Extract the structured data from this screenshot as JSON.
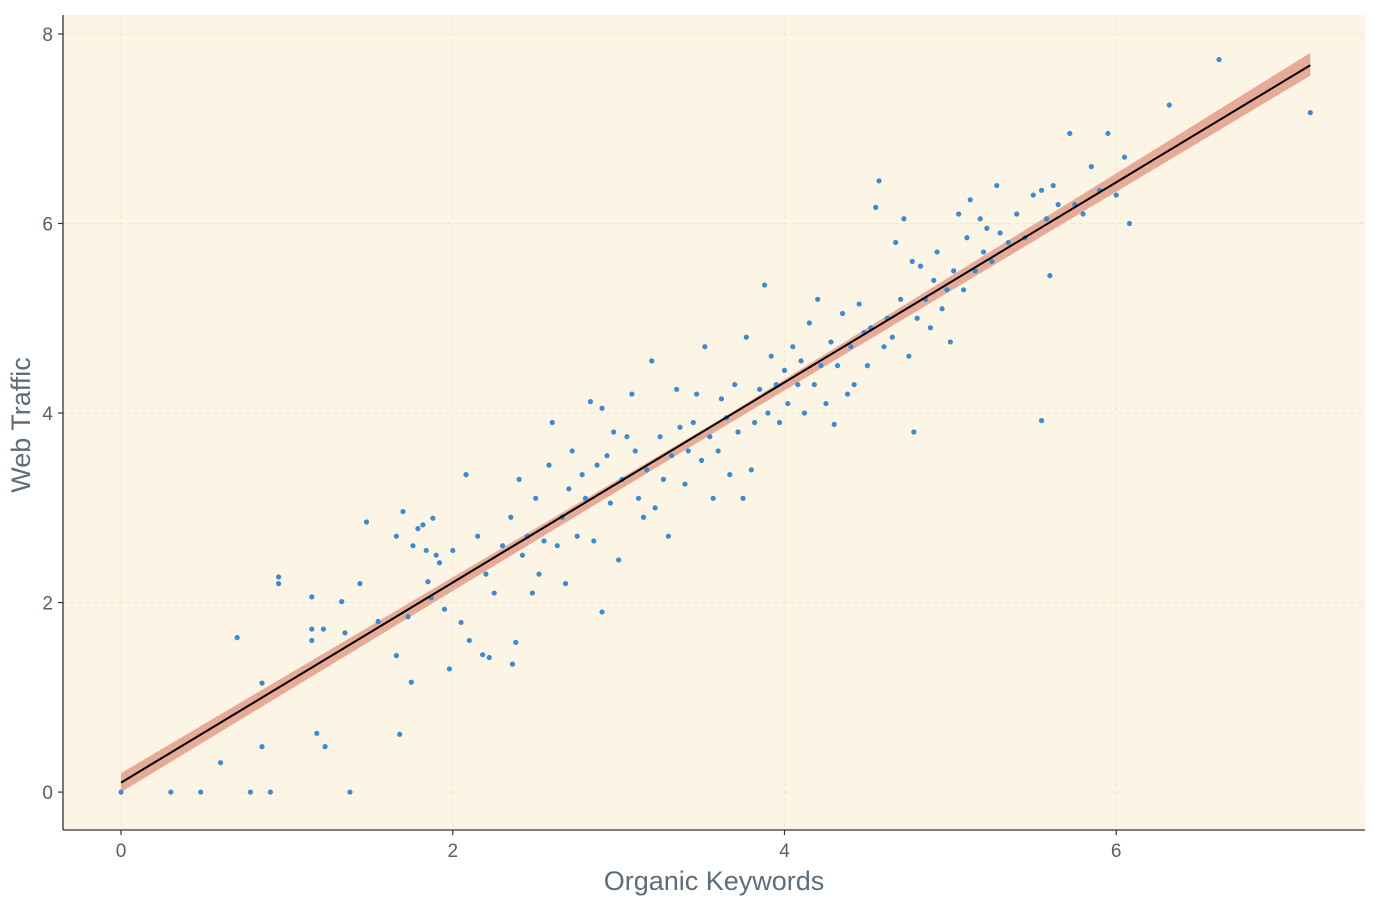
{
  "chart_data": {
    "type": "scatter",
    "title": "",
    "xlabel": "Organic Keywords",
    "ylabel": "Web Traffic",
    "xlim": [
      -0.35,
      7.5
    ],
    "ylim": [
      -0.4,
      8.2
    ],
    "x_ticks": [
      "0",
      "2",
      "4",
      "6"
    ],
    "y_ticks": [
      "0",
      "2",
      "4",
      "6",
      "8"
    ],
    "grid": true,
    "legend": "none",
    "colors": {
      "panel_background": "#fcf5e5",
      "points": "#3a8bd3",
      "fit_line": "#000000",
      "confidence_band": "#e3a28e",
      "grid": "#efe5cd",
      "axis_line": "#333333"
    },
    "fit_line": {
      "x": [
        0,
        7.17
      ],
      "y": [
        0.1,
        7.67
      ]
    },
    "confidence_band": {
      "x": [
        0,
        3.6,
        7.17
      ],
      "y_lower": [
        0.0,
        3.82,
        7.56
      ],
      "y_upper": [
        0.2,
        3.92,
        7.8
      ]
    },
    "points": [
      [
        0.0,
        0.0
      ],
      [
        0.3,
        0.0
      ],
      [
        0.48,
        0.0
      ],
      [
        0.6,
        0.31
      ],
      [
        0.7,
        1.63
      ],
      [
        0.78,
        0.0
      ],
      [
        0.85,
        1.15
      ],
      [
        0.85,
        0.48
      ],
      [
        0.9,
        0.0
      ],
      [
        0.95,
        2.27
      ],
      [
        0.95,
        2.2
      ],
      [
        1.15,
        2.06
      ],
      [
        1.15,
        1.72
      ],
      [
        1.15,
        1.6
      ],
      [
        1.18,
        0.62
      ],
      [
        1.22,
        1.72
      ],
      [
        1.23,
        0.48
      ],
      [
        1.33,
        2.01
      ],
      [
        1.35,
        1.68
      ],
      [
        1.38,
        0.0
      ],
      [
        1.44,
        2.2
      ],
      [
        1.48,
        2.85
      ],
      [
        1.55,
        1.8
      ],
      [
        1.66,
        2.7
      ],
      [
        1.66,
        1.44
      ],
      [
        1.68,
        0.61
      ],
      [
        1.7,
        2.96
      ],
      [
        1.73,
        1.85
      ],
      [
        1.75,
        1.16
      ],
      [
        1.76,
        2.6
      ],
      [
        1.79,
        2.78
      ],
      [
        1.82,
        2.82
      ],
      [
        1.84,
        2.55
      ],
      [
        1.85,
        2.22
      ],
      [
        1.87,
        2.05
      ],
      [
        1.88,
        2.89
      ],
      [
        1.9,
        2.5
      ],
      [
        1.92,
        2.42
      ],
      [
        1.95,
        1.93
      ],
      [
        1.98,
        1.3
      ],
      [
        2.0,
        2.55
      ],
      [
        2.05,
        1.79
      ],
      [
        2.08,
        3.35
      ],
      [
        2.1,
        1.6
      ],
      [
        2.15,
        2.7
      ],
      [
        2.18,
        1.45
      ],
      [
        2.2,
        2.3
      ],
      [
        2.22,
        1.42
      ],
      [
        2.25,
        2.1
      ],
      [
        2.3,
        2.6
      ],
      [
        2.35,
        2.9
      ],
      [
        2.36,
        1.35
      ],
      [
        2.38,
        1.58
      ],
      [
        2.4,
        3.3
      ],
      [
        2.42,
        2.5
      ],
      [
        2.45,
        2.7
      ],
      [
        2.48,
        2.1
      ],
      [
        2.5,
        3.1
      ],
      [
        2.52,
        2.3
      ],
      [
        2.55,
        2.65
      ],
      [
        2.58,
        3.45
      ],
      [
        2.6,
        3.9
      ],
      [
        2.63,
        2.6
      ],
      [
        2.66,
        2.9
      ],
      [
        2.68,
        2.2
      ],
      [
        2.7,
        3.2
      ],
      [
        2.72,
        3.6
      ],
      [
        2.75,
        2.7
      ],
      [
        2.78,
        3.35
      ],
      [
        2.8,
        3.1
      ],
      [
        2.83,
        4.12
      ],
      [
        2.85,
        2.65
      ],
      [
        2.87,
        3.45
      ],
      [
        2.9,
        1.9
      ],
      [
        2.9,
        4.05
      ],
      [
        2.93,
        3.55
      ],
      [
        2.95,
        3.05
      ],
      [
        2.97,
        3.8
      ],
      [
        3.0,
        2.45
      ],
      [
        3.02,
        3.3
      ],
      [
        3.05,
        3.75
      ],
      [
        3.08,
        4.2
      ],
      [
        3.1,
        3.6
      ],
      [
        3.12,
        3.1
      ],
      [
        3.15,
        2.9
      ],
      [
        3.17,
        3.4
      ],
      [
        3.2,
        4.55
      ],
      [
        3.22,
        3.0
      ],
      [
        3.25,
        3.75
      ],
      [
        3.27,
        3.3
      ],
      [
        3.3,
        2.7
      ],
      [
        3.32,
        3.55
      ],
      [
        3.35,
        4.25
      ],
      [
        3.37,
        3.85
      ],
      [
        3.4,
        3.25
      ],
      [
        3.42,
        3.6
      ],
      [
        3.45,
        3.9
      ],
      [
        3.47,
        4.2
      ],
      [
        3.5,
        3.5
      ],
      [
        3.52,
        4.7
      ],
      [
        3.55,
        3.75
      ],
      [
        3.57,
        3.1
      ],
      [
        3.6,
        3.6
      ],
      [
        3.62,
        4.15
      ],
      [
        3.65,
        3.95
      ],
      [
        3.67,
        3.35
      ],
      [
        3.7,
        4.3
      ],
      [
        3.72,
        3.8
      ],
      [
        3.75,
        3.1
      ],
      [
        3.77,
        4.8
      ],
      [
        3.8,
        3.4
      ],
      [
        3.82,
        3.9
      ],
      [
        3.85,
        4.25
      ],
      [
        3.88,
        5.35
      ],
      [
        3.9,
        4.0
      ],
      [
        3.92,
        4.6
      ],
      [
        3.95,
        4.3
      ],
      [
        3.97,
        3.9
      ],
      [
        4.0,
        4.45
      ],
      [
        4.02,
        4.1
      ],
      [
        4.05,
        4.7
      ],
      [
        4.08,
        4.3
      ],
      [
        4.1,
        4.55
      ],
      [
        4.12,
        4.0
      ],
      [
        4.15,
        4.95
      ],
      [
        4.18,
        4.3
      ],
      [
        4.2,
        5.2
      ],
      [
        4.22,
        4.5
      ],
      [
        4.25,
        4.1
      ],
      [
        4.28,
        4.75
      ],
      [
        4.3,
        3.88
      ],
      [
        4.32,
        4.5
      ],
      [
        4.35,
        5.05
      ],
      [
        4.38,
        4.2
      ],
      [
        4.4,
        4.7
      ],
      [
        4.42,
        4.3
      ],
      [
        4.45,
        5.15
      ],
      [
        4.48,
        4.85
      ],
      [
        4.5,
        4.5
      ],
      [
        4.52,
        4.9
      ],
      [
        4.55,
        6.17
      ],
      [
        4.57,
        6.45
      ],
      [
        4.6,
        4.7
      ],
      [
        4.62,
        5.0
      ],
      [
        4.65,
        4.8
      ],
      [
        4.67,
        5.8
      ],
      [
        4.7,
        5.2
      ],
      [
        4.72,
        6.05
      ],
      [
        4.75,
        4.6
      ],
      [
        4.77,
        5.6
      ],
      [
        4.78,
        3.8
      ],
      [
        4.8,
        5.0
      ],
      [
        4.82,
        5.55
      ],
      [
        4.85,
        5.2
      ],
      [
        4.88,
        4.9
      ],
      [
        4.9,
        5.4
      ],
      [
        4.92,
        5.7
      ],
      [
        4.95,
        5.1
      ],
      [
        4.98,
        5.3
      ],
      [
        5.0,
        4.75
      ],
      [
        5.02,
        5.5
      ],
      [
        5.05,
        6.1
      ],
      [
        5.08,
        5.3
      ],
      [
        5.1,
        5.85
      ],
      [
        5.12,
        6.25
      ],
      [
        5.15,
        5.5
      ],
      [
        5.18,
        6.05
      ],
      [
        5.2,
        5.7
      ],
      [
        5.22,
        5.95
      ],
      [
        5.25,
        5.6
      ],
      [
        5.28,
        6.4
      ],
      [
        5.3,
        5.9
      ],
      [
        5.35,
        5.8
      ],
      [
        5.4,
        6.1
      ],
      [
        5.45,
        5.85
      ],
      [
        5.5,
        6.3
      ],
      [
        5.55,
        6.35
      ],
      [
        5.55,
        3.92
      ],
      [
        5.58,
        6.05
      ],
      [
        5.6,
        5.45
      ],
      [
        5.62,
        6.4
      ],
      [
        5.65,
        6.2
      ],
      [
        5.72,
        6.95
      ],
      [
        5.75,
        6.2
      ],
      [
        5.8,
        6.1
      ],
      [
        5.85,
        6.6
      ],
      [
        5.9,
        6.35
      ],
      [
        5.95,
        6.95
      ],
      [
        6.0,
        6.3
      ],
      [
        6.05,
        6.7
      ],
      [
        6.08,
        6.0
      ],
      [
        6.32,
        7.25
      ],
      [
        6.62,
        7.73
      ],
      [
        7.17,
        7.17
      ]
    ]
  }
}
